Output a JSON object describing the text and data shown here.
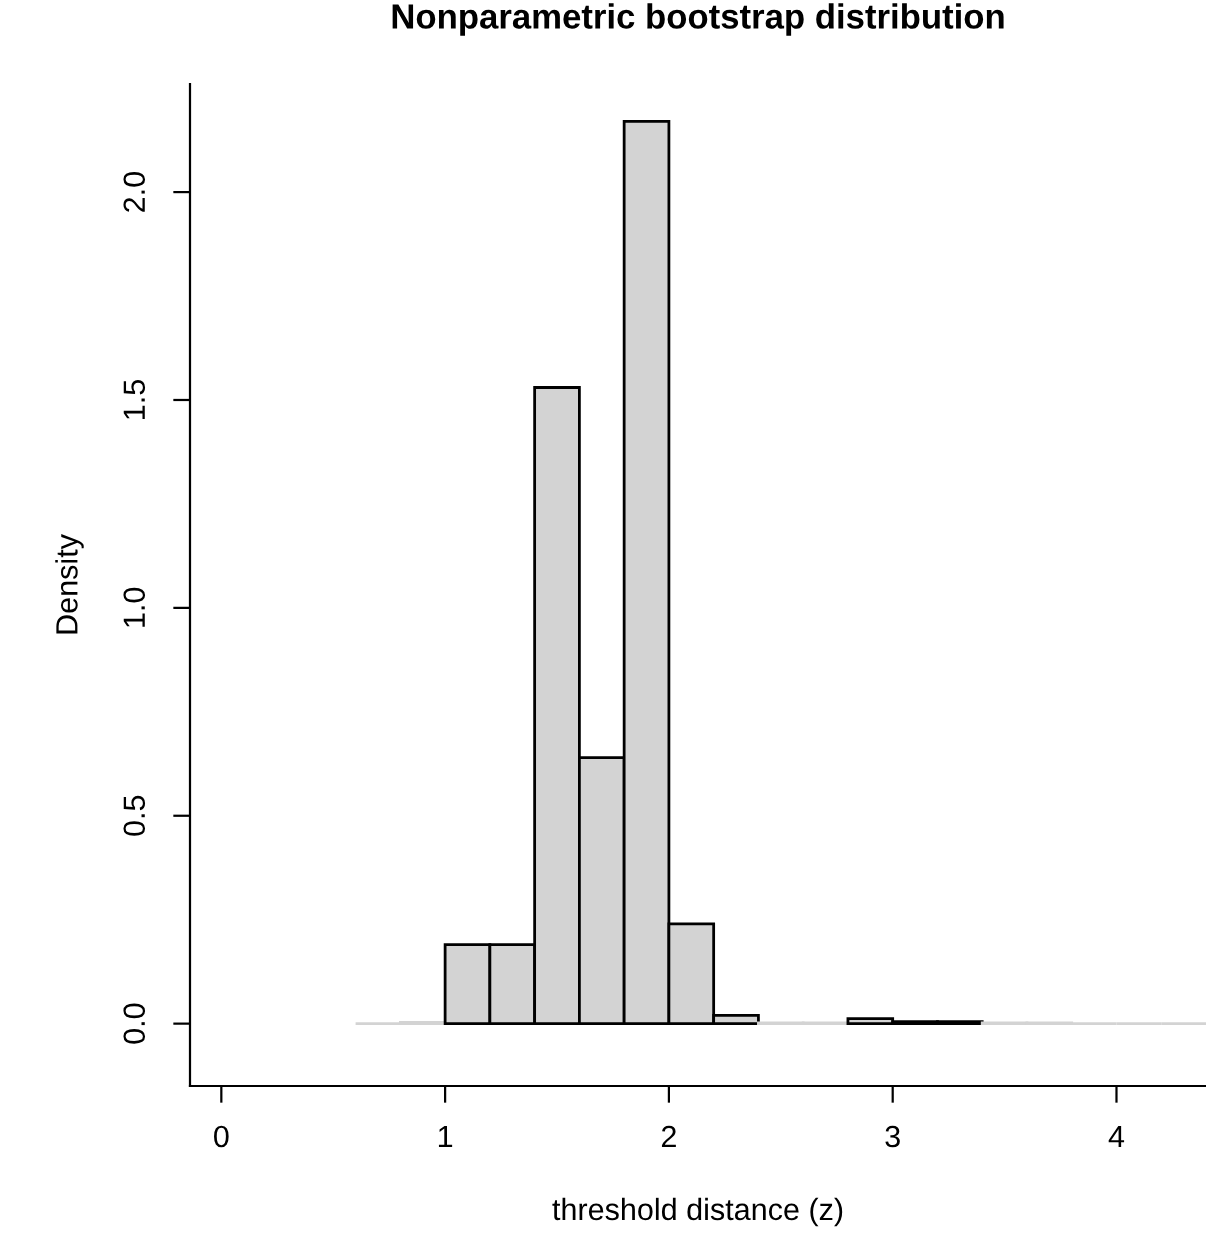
{
  "chart_data": {
    "type": "histogram",
    "title": "Nonparametric bootstrap distribution",
    "xlabel": "threshold distance (z)",
    "ylabel": "Density",
    "bins": [
      0.6,
      0.8,
      1.0,
      1.2,
      1.4,
      1.6,
      1.8,
      2.0,
      2.2,
      2.4,
      2.6,
      2.8,
      3.0,
      3.2,
      3.4,
      3.6,
      3.8,
      4.0,
      4.2,
      4.4
    ],
    "values": [
      0,
      0.003,
      0.19,
      0.19,
      1.53,
      0.64,
      2.17,
      0.24,
      0.02,
      0.002,
      0.002,
      0.012,
      0.005,
      0.005,
      0.002,
      0.002,
      0,
      0,
      0
    ],
    "color": "#d3d3d3",
    "xlim": [
      -0.14,
      4.4
    ],
    "xticks": [
      0,
      1,
      2,
      3,
      4
    ],
    "ylim": [
      -0.15,
      2.26
    ],
    "yticks": [
      {
        "value": 0,
        "label": "0.0"
      },
      {
        "value": 0.5,
        "label": "0.5"
      },
      {
        "value": 1.0,
        "label": "1.0"
      },
      {
        "value": 1.5,
        "label": "1.5"
      },
      {
        "value": 2.0,
        "label": "2.0"
      }
    ],
    "grid": false
  }
}
